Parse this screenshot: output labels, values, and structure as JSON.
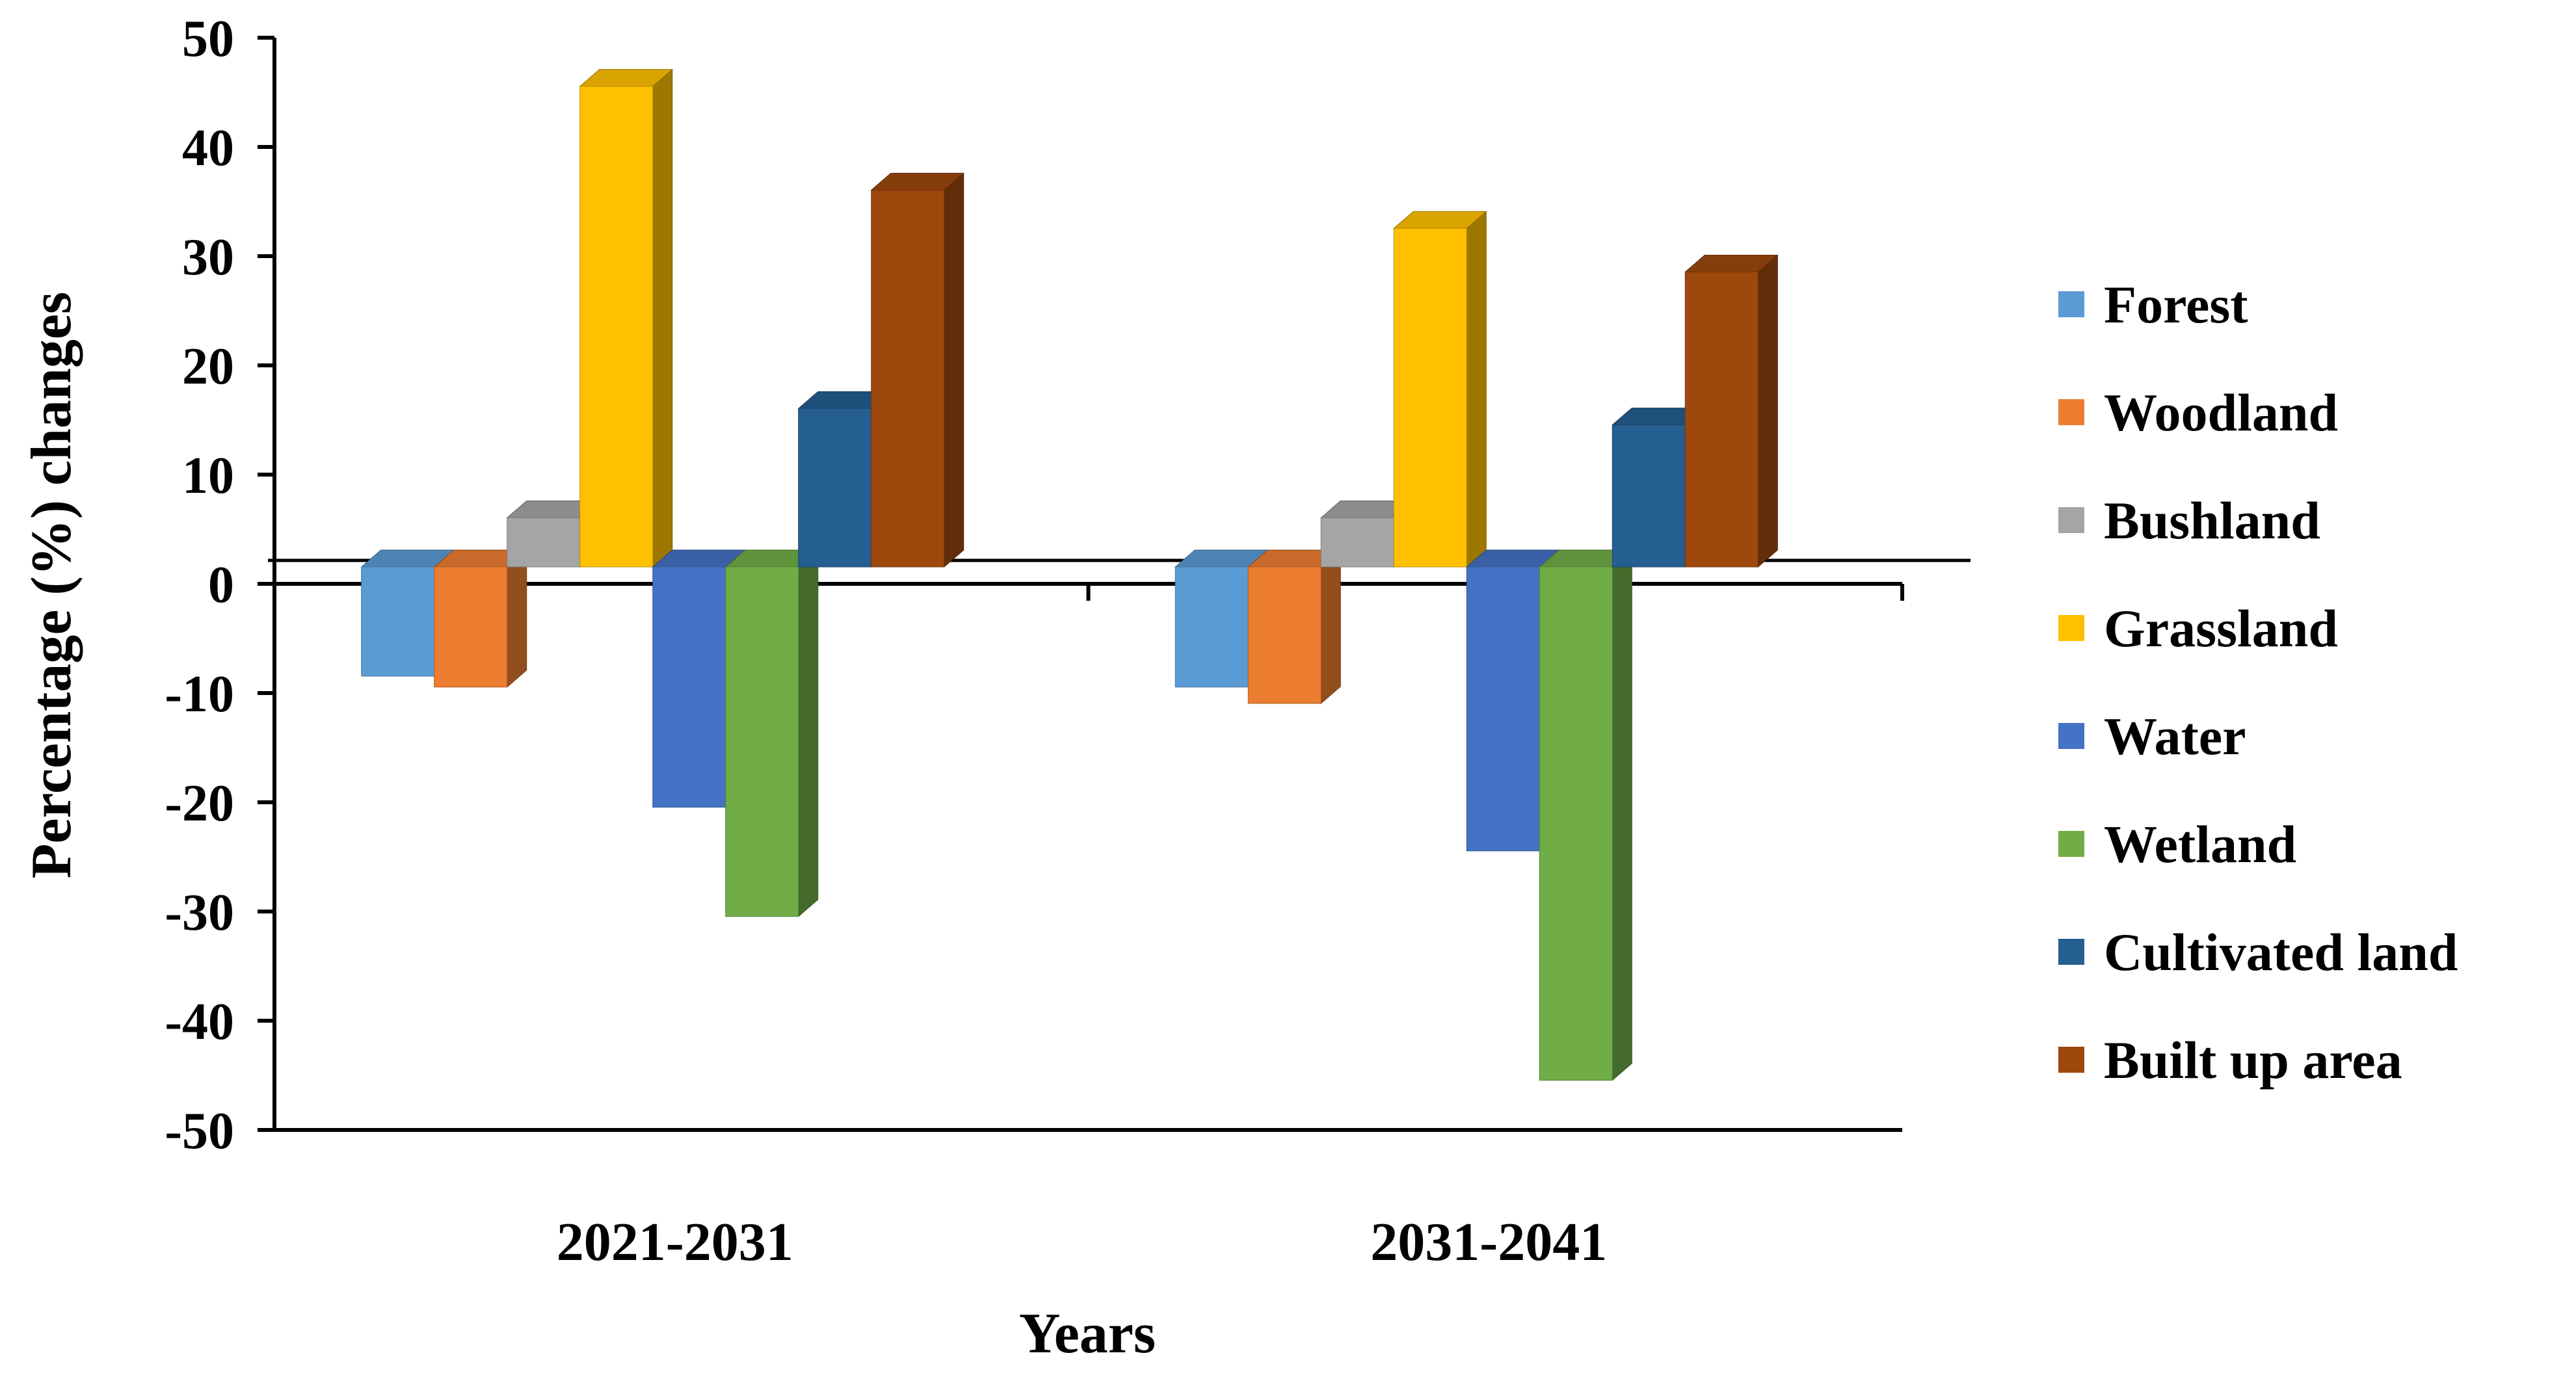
{
  "chart_data": {
    "type": "bar",
    "style": "3d-clustered-column",
    "categories": [
      "2021-2031",
      "2031-2041"
    ],
    "xlabel": "Years",
    "ylabel": "Percentage (%) changes",
    "ylim": [
      -50,
      50
    ],
    "yticks": [
      50,
      40,
      30,
      20,
      10,
      0,
      -10,
      -20,
      -30,
      -40,
      -50
    ],
    "grid": false,
    "legend_position": "right",
    "series": [
      {
        "name": "Forest",
        "color": "#5B9BD5",
        "values": [
          -10,
          -11
        ]
      },
      {
        "name": "Woodland",
        "color": "#ED7D31",
        "values": [
          -11,
          -12.5
        ]
      },
      {
        "name": "Bushland",
        "color": "#A5A5A5",
        "values": [
          4.5,
          4.5
        ]
      },
      {
        "name": "Grassland",
        "color": "#FFC000",
        "values": [
          44,
          31
        ]
      },
      {
        "name": "Water",
        "color": "#4472C4",
        "values": [
          -22,
          -26
        ]
      },
      {
        "name": "Wetland",
        "color": "#70AD47",
        "values": [
          -32,
          -47
        ]
      },
      {
        "name": "Cultivated land",
        "color": "#255E91",
        "values": [
          14.5,
          13
        ]
      },
      {
        "name": "Built up area",
        "color": "#9E480E",
        "values": [
          34.5,
          27
        ]
      }
    ]
  }
}
